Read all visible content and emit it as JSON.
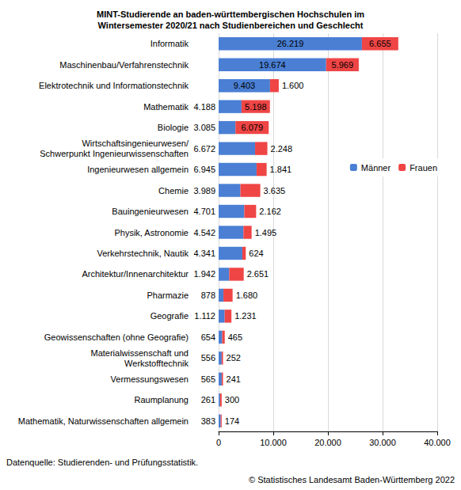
{
  "chart_data": {
    "type": "bar",
    "title": "MINT-Studierende an baden-württembergischen Hochschulen im\nWintersemester 2020/21 nach Studienbereichen und Geschlecht",
    "orientation": "horizontal",
    "stacked": true,
    "data_labels": true,
    "grid": true,
    "legend": "upper right",
    "categories": [
      "Informatik",
      "Maschinenbau/Verfahrenstechnik",
      "Elektrotechnik und Informationstechnik",
      "Mathematik",
      "Biologie",
      "Wirtschaftsingenieurwesen/\nSchwerpunkt Ingenieurwissenschaften",
      "Ingenieurwesen allgemein",
      "Chemie",
      "Bauingenieurwesen",
      "Physik, Astronomie",
      "Verkehrstechnik, Nautik",
      "Architektur/Innenarchitektur",
      "Pharmazie",
      "Geografie",
      "Geowissenschaften (ohne Geografie)",
      "Materialwissenschaft und\nWerkstofftechnik",
      "Vermessungswesen",
      "Raumplanung",
      "Mathematik, Naturwissenschaften allgemein"
    ],
    "series": [
      {
        "name": "Männer",
        "color": "#4a7fd4",
        "values": [
          26219,
          19674,
          9403,
          4188,
          3085,
          6672,
          6945,
          3989,
          4701,
          4542,
          4341,
          1942,
          878,
          1112,
          654,
          556,
          565,
          261,
          383
        ],
        "value_labels": [
          "26.219",
          "19.674",
          "9.403",
          "4.188",
          "3.085",
          "6.672",
          "6.945",
          "3.989",
          "4.701",
          "4.542",
          "4.341",
          "1.942",
          "878",
          "1.112",
          "654",
          "556",
          "565",
          "261",
          "383"
        ]
      },
      {
        "name": "Frauen",
        "color": "#ef4545",
        "values": [
          6655,
          5969,
          1600,
          5198,
          6079,
          2248,
          1841,
          3635,
          2162,
          1495,
          624,
          2651,
          1680,
          1231,
          465,
          252,
          241,
          300,
          174
        ],
        "value_labels": [
          "6.655",
          "5.969",
          "1.600",
          "5.198",
          "6.079",
          "2.248",
          "1.841",
          "3.635",
          "2.162",
          "1.495",
          "624",
          "2.651",
          "1.680",
          "1.231",
          "465",
          "252",
          "241",
          "300",
          "174"
        ]
      }
    ],
    "xlim": [
      0,
      40000
    ],
    "xticks": [
      {
        "value": 0,
        "label": "0"
      },
      {
        "value": 10000,
        "label": "10.000"
      },
      {
        "value": 20000,
        "label": "20.000"
      },
      {
        "value": 30000,
        "label": "30.000"
      },
      {
        "value": 40000,
        "label": "40.000"
      }
    ],
    "annotations": [
      "Datenquelle: Studierenden- und Prüfungsstatistik.",
      "© Statistisches Landesamt Baden-Württemberg 2022"
    ]
  }
}
